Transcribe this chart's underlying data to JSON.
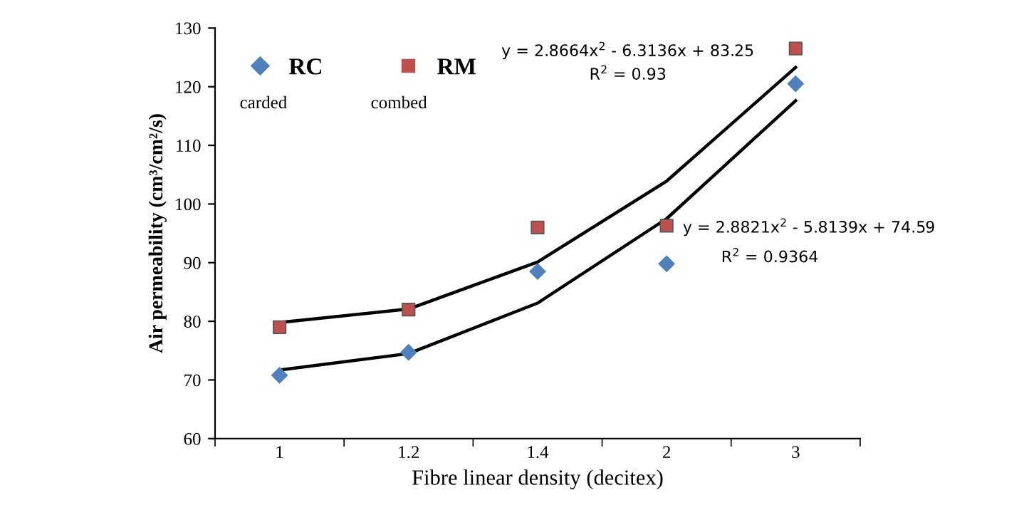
{
  "chart_data": {
    "type": "scatter",
    "xlabel": "Fibre linear density (decitex)",
    "ylabel": "Air permeability (cm³/cm²/s)",
    "categories": [
      "1",
      "1.2",
      "1.4",
      "2",
      "3"
    ],
    "series": [
      {
        "name": "RC",
        "color": "#4f81bd",
        "marker": "diamond",
        "values": [
          70.8,
          74.7,
          88.5,
          89.8,
          120.5
        ]
      },
      {
        "name": "RM",
        "color": "#c0504d",
        "marker": "square",
        "values": [
          79.0,
          82.0,
          96.0,
          96.3,
          126.5
        ]
      },
      {
        "type": "line",
        "color": "#000000",
        "marker": "none",
        "values": [
          79.8,
          82.1,
          90.1,
          103.9,
          123.3
        ]
      },
      {
        "type": "line",
        "color": "#000000",
        "marker": "none",
        "values": [
          71.7,
          74.5,
          83.1,
          97.5,
          117.6
        ]
      }
    ],
    "ylim": [
      60,
      130
    ],
    "yticks": [
      60,
      70,
      80,
      90,
      100,
      110,
      120,
      130
    ],
    "grid": false,
    "legend": "top left",
    "annotations": [
      "y = 2.8664x$^{2}$ - 6.3136x + 83.25",
      "R$^{2}$ = 0.93",
      "y = 2.8821x$^{2}$ - 5.8139x + 74.59",
      "R$^{2}$ = 0.9364",
      "carded",
      "combed"
    ]
  }
}
